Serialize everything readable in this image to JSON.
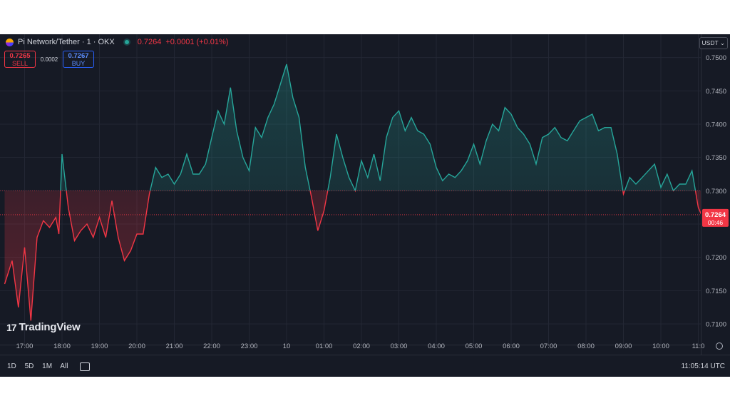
{
  "header": {
    "symbol": "Pi Network/Tether · 1 · OKX",
    "last": "0.7264",
    "change": "+0.0001 (+0.01%)"
  },
  "trade": {
    "sell_price": "0.7265",
    "sell_label": "SELL",
    "spread": "0.0002",
    "buy_price": "0.7267",
    "buy_label": "BUY"
  },
  "currency": "USDT ⌄",
  "brand": "TradingView",
  "price_label": {
    "value": "0.7264",
    "countdown": "00:46"
  },
  "bottom": {
    "ranges": [
      "1D",
      "5D",
      "1M",
      "All"
    ],
    "clock": "11:05:14 UTC"
  },
  "colors": {
    "up": "#26a69a",
    "down": "#f23645",
    "bg": "#161a25",
    "grid": "#232734",
    "text": "#b2b5be"
  },
  "chart_data": {
    "type": "area",
    "y_ticks": [
      "0.7100",
      "0.7150",
      "0.7200",
      "0.7250",
      "0.7300",
      "0.7350",
      "0.7400",
      "0.7450",
      "0.7500"
    ],
    "x_ticks": [
      "17:00",
      "18:00",
      "19:00",
      "20:00",
      "21:00",
      "22:00",
      "23:00",
      "10",
      "01:00",
      "02:00",
      "03:00",
      "04:00",
      "05:00",
      "06:00",
      "07:00",
      "08:00",
      "09:00",
      "10:00",
      "11:0"
    ],
    "baseline": 0.73,
    "last_price": 0.7264,
    "ylim": [
      0.7085,
      0.7505
    ],
    "x": [
      "16:28",
      "16:40",
      "16:50",
      "17:00",
      "17:10",
      "17:20",
      "17:30",
      "17:40",
      "17:50",
      "17:55",
      "18:00",
      "18:10",
      "18:20",
      "18:30",
      "18:40",
      "18:50",
      "19:00",
      "19:10",
      "19:20",
      "19:30",
      "19:40",
      "19:50",
      "20:00",
      "20:10",
      "20:20",
      "20:30",
      "20:40",
      "20:50",
      "21:00",
      "21:10",
      "21:20",
      "21:30",
      "21:40",
      "21:50",
      "22:00",
      "22:10",
      "22:20",
      "22:30",
      "22:40",
      "22:50",
      "23:00",
      "23:10",
      "23:20",
      "23:30",
      "23:40",
      "23:50",
      "00:00",
      "00:10",
      "00:20",
      "00:30",
      "00:40",
      "00:50",
      "01:00",
      "01:10",
      "01:20",
      "01:30",
      "01:40",
      "01:50",
      "02:00",
      "02:10",
      "02:20",
      "02:30",
      "02:40",
      "02:50",
      "03:00",
      "03:10",
      "03:20",
      "03:30",
      "03:40",
      "03:50",
      "04:00",
      "04:10",
      "04:20",
      "04:30",
      "04:40",
      "04:50",
      "05:00",
      "05:10",
      "05:20",
      "05:30",
      "05:40",
      "05:50",
      "06:00",
      "06:10",
      "06:20",
      "06:30",
      "06:40",
      "06:50",
      "07:00",
      "07:10",
      "07:20",
      "07:30",
      "07:40",
      "07:50",
      "08:00",
      "08:10",
      "08:20",
      "08:30",
      "08:40",
      "08:50",
      "09:00",
      "09:10",
      "09:20",
      "09:30",
      "09:40",
      "09:50",
      "10:00",
      "10:10",
      "10:20",
      "10:30",
      "10:40",
      "10:50",
      "11:00",
      "11:05"
    ],
    "series": [
      {
        "values": [
          0.716,
          0.7195,
          0.7125,
          0.7215,
          0.7105,
          0.723,
          0.7255,
          0.7245,
          0.726,
          0.7235,
          0.7355,
          0.7275,
          0.7225,
          0.724,
          0.725,
          0.723,
          0.726,
          0.723,
          0.7285,
          0.723,
          0.7195,
          0.721,
          0.7235,
          0.7235,
          0.7295,
          0.7335,
          0.732,
          0.7325,
          0.731,
          0.7325,
          0.7355,
          0.7325,
          0.7325,
          0.734,
          0.738,
          0.742,
          0.74,
          0.7455,
          0.739,
          0.735,
          0.733,
          0.7395,
          0.738,
          0.741,
          0.743,
          0.746,
          0.749,
          0.744,
          0.741,
          0.7335,
          0.729,
          0.724,
          0.727,
          0.732,
          0.7385,
          0.735,
          0.732,
          0.73,
          0.7345,
          0.732,
          0.7355,
          0.7315,
          0.738,
          0.741,
          0.742,
          0.739,
          0.741,
          0.739,
          0.7385,
          0.737,
          0.7335,
          0.7315,
          0.7325,
          0.732,
          0.733,
          0.7345,
          0.737,
          0.734,
          0.7375,
          0.74,
          0.739,
          0.7425,
          0.7415,
          0.7395,
          0.7385,
          0.737,
          0.734,
          0.738,
          0.7385,
          0.7395,
          0.738,
          0.7375,
          0.739,
          0.7405,
          0.741,
          0.7415,
          0.739,
          0.7395,
          0.7395,
          0.7355,
          0.7295,
          0.732,
          0.731,
          0.732,
          0.733,
          0.734,
          0.7305,
          0.7325,
          0.73,
          0.731,
          0.731,
          0.733,
          0.7275,
          0.7264
        ]
      }
    ]
  }
}
